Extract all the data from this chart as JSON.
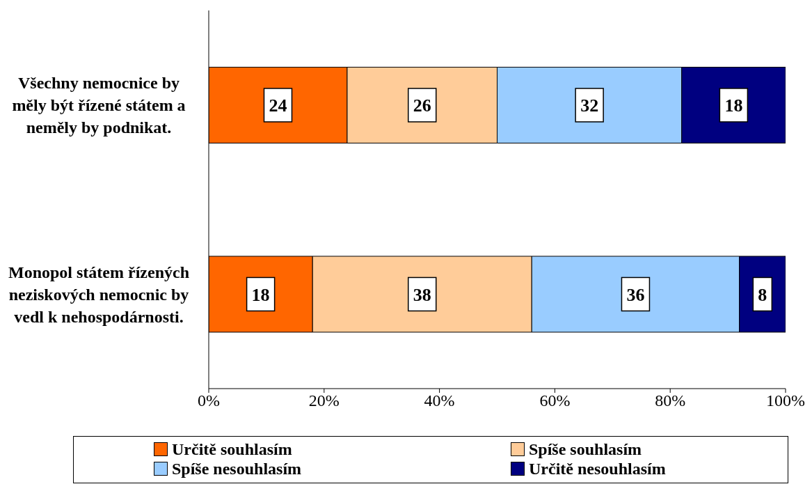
{
  "chart_data": {
    "type": "bar",
    "orientation": "horizontal",
    "stacked": true,
    "categories": [
      "Všechny nemocnice by měly být řízené státem a neměly by podnikat.",
      "Monopol státem řízených neziskových nemocnic by vedl k nehospodárnosti."
    ],
    "series": [
      {
        "name": "Určitě souhlasím",
        "color": "#ff6600",
        "values": [
          24,
          18
        ]
      },
      {
        "name": "Spíše souhlasím",
        "color": "#ffcc99",
        "values": [
          26,
          38
        ]
      },
      {
        "name": "Spíše nesouhlasím",
        "color": "#99ccff",
        "values": [
          32,
          36
        ]
      },
      {
        "name": "Určitě nesouhlasím",
        "color": "#000080",
        "values": [
          18,
          8
        ]
      }
    ],
    "xlim": [
      0,
      100
    ],
    "xticks": [
      {
        "value": 0,
        "label": "0%"
      },
      {
        "value": 20,
        "label": "20%"
      },
      {
        "value": 40,
        "label": "40%"
      },
      {
        "value": 60,
        "label": "60%"
      },
      {
        "value": 80,
        "label": "80%"
      },
      {
        "value": 100,
        "label": "100%"
      }
    ],
    "data_labels": true,
    "grid": false,
    "legend": "bottom"
  }
}
